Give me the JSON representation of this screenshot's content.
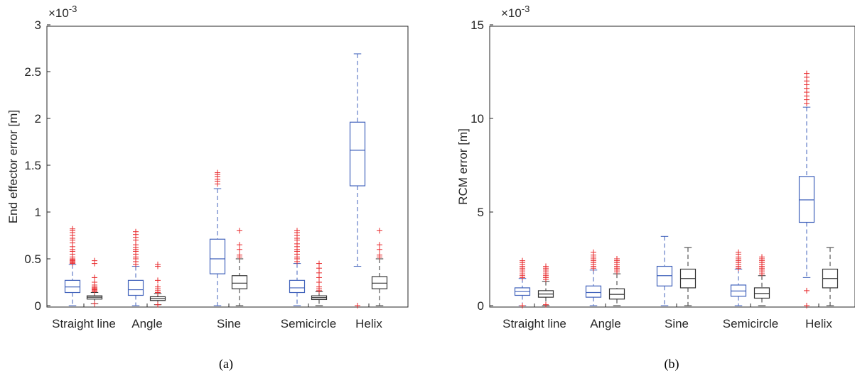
{
  "chart_data": [
    {
      "type": "box",
      "caption": "(a)",
      "ylabel": "End effector error [m]",
      "exponent_label": "×10",
      "exponent_power": "-3",
      "ylim": [
        0,
        3
      ],
      "yticks": [
        "0",
        "0.5",
        "1",
        "1.5",
        "2",
        "2.5",
        "3"
      ],
      "categories": [
        "Straight line",
        "Angle",
        "Sine",
        "Semicircle",
        "Helix"
      ],
      "series_colors": [
        "#4062bb",
        "#333333"
      ],
      "outlier_color": "#e8282b",
      "boxes": [
        {
          "category": "Straight line",
          "series": 0,
          "min": 0.0,
          "q1": 0.14,
          "median": 0.2,
          "q3": 0.27,
          "max": 0.44,
          "outliers": [
            0.45,
            0.46,
            0.47,
            0.48,
            0.49,
            0.5,
            0.52,
            0.55,
            0.58,
            0.6,
            0.63,
            0.67,
            0.7,
            0.72,
            0.75,
            0.78,
            0.8,
            0.82
          ]
        },
        {
          "category": "Straight line",
          "series": 1,
          "min": 0.02,
          "q1": 0.07,
          "median": 0.09,
          "q3": 0.105,
          "max": 0.14,
          "outliers": [
            0.02,
            0.15,
            0.16,
            0.17,
            0.18,
            0.19,
            0.2,
            0.22,
            0.25,
            0.3,
            0.45,
            0.48
          ]
        },
        {
          "category": "Angle",
          "series": 0,
          "min": 0.0,
          "q1": 0.11,
          "median": 0.17,
          "q3": 0.27,
          "max": 0.42,
          "outliers": [
            0.44,
            0.47,
            0.5,
            0.52,
            0.55,
            0.58,
            0.6,
            0.62,
            0.65,
            0.7,
            0.73,
            0.76,
            0.79
          ]
        },
        {
          "category": "Angle",
          "series": 1,
          "min": 0.01,
          "q1": 0.055,
          "median": 0.075,
          "q3": 0.095,
          "max": 0.13,
          "outliers": [
            0.01,
            0.14,
            0.16,
            0.18,
            0.2,
            0.27,
            0.42,
            0.44
          ]
        },
        {
          "category": "Sine",
          "series": 0,
          "min": 0.0,
          "q1": 0.34,
          "median": 0.5,
          "q3": 0.71,
          "max": 1.25,
          "outliers": [
            1.3,
            1.33,
            1.35,
            1.38,
            1.4,
            1.42
          ]
        },
        {
          "category": "Sine",
          "series": 1,
          "min": 0.0,
          "q1": 0.18,
          "median": 0.24,
          "q3": 0.32,
          "max": 0.5,
          "outliers": [
            0.52,
            0.54,
            0.6,
            0.65,
            0.8
          ]
        },
        {
          "category": "Semicircle",
          "series": 0,
          "min": 0.0,
          "q1": 0.14,
          "median": 0.19,
          "q3": 0.27,
          "max": 0.45,
          "outliers": [
            0.47,
            0.5,
            0.52,
            0.55,
            0.58,
            0.6,
            0.63,
            0.66,
            0.7,
            0.72,
            0.75,
            0.78,
            0.8
          ]
        },
        {
          "category": "Semicircle",
          "series": 1,
          "min": 0.0,
          "q1": 0.065,
          "median": 0.085,
          "q3": 0.105,
          "max": 0.15,
          "outliers": [
            0.16,
            0.18,
            0.2,
            0.25,
            0.3,
            0.35,
            0.4,
            0.45
          ]
        },
        {
          "category": "Helix",
          "series": 0,
          "min": 0.42,
          "q1": 1.28,
          "median": 1.66,
          "q3": 1.96,
          "max": 2.69,
          "outliers": [
            0.0
          ]
        },
        {
          "category": "Helix",
          "series": 1,
          "min": 0.0,
          "q1": 0.18,
          "median": 0.24,
          "q3": 0.31,
          "max": 0.5,
          "outliers": [
            0.52,
            0.54,
            0.6,
            0.65,
            0.8
          ]
        }
      ]
    },
    {
      "type": "box",
      "caption": "(b)",
      "ylabel": "RCM error [m]",
      "exponent_label": "×10",
      "exponent_power": "-3",
      "ylim": [
        0,
        15
      ],
      "yticks": [
        "0",
        "5",
        "10",
        "15"
      ],
      "categories": [
        "Straight line",
        "Angle",
        "Sine",
        "Semicircle",
        "Helix"
      ],
      "series_colors": [
        "#4062bb",
        "#333333"
      ],
      "outlier_color": "#e8282b",
      "boxes": [
        {
          "category": "Straight line",
          "series": 0,
          "min": 0.0,
          "q1": 0.55,
          "median": 0.75,
          "q3": 0.95,
          "max": 1.45,
          "outliers": [
            0.0,
            1.5,
            1.6,
            1.7,
            1.8,
            1.9,
            2.0,
            2.1,
            2.2,
            2.3,
            2.4
          ]
        },
        {
          "category": "Straight line",
          "series": 1,
          "min": 0.0,
          "q1": 0.45,
          "median": 0.62,
          "q3": 0.8,
          "max": 1.3,
          "outliers": [
            0.05,
            1.4,
            1.5,
            1.6,
            1.7,
            1.8,
            1.9,
            2.0,
            2.1
          ]
        },
        {
          "category": "Angle",
          "series": 0,
          "min": 0.0,
          "q1": 0.45,
          "median": 0.7,
          "q3": 1.05,
          "max": 1.9,
          "outliers": [
            2.0,
            2.1,
            2.2,
            2.3,
            2.4,
            2.5,
            2.6,
            2.7,
            2.85
          ]
        },
        {
          "category": "Angle",
          "series": 1,
          "min": 0.0,
          "q1": 0.35,
          "median": 0.6,
          "q3": 0.9,
          "max": 1.7,
          "outliers": [
            1.8,
            1.9,
            2.0,
            2.1,
            2.2,
            2.3,
            2.4,
            2.5
          ]
        },
        {
          "category": "Sine",
          "series": 0,
          "min": 0.0,
          "q1": 1.05,
          "median": 1.6,
          "q3": 2.1,
          "max": 3.7,
          "outliers": []
        },
        {
          "category": "Sine",
          "series": 1,
          "min": 0.0,
          "q1": 0.95,
          "median": 1.45,
          "q3": 1.95,
          "max": 3.1,
          "outliers": []
        },
        {
          "category": "Semicircle",
          "series": 0,
          "min": 0.0,
          "q1": 0.5,
          "median": 0.78,
          "q3": 1.1,
          "max": 1.95,
          "outliers": [
            2.0,
            2.1,
            2.2,
            2.3,
            2.4,
            2.5,
            2.6,
            2.75,
            2.85
          ]
        },
        {
          "category": "Semicircle",
          "series": 1,
          "min": 0.0,
          "q1": 0.4,
          "median": 0.65,
          "q3": 0.95,
          "max": 1.6,
          "outliers": [
            1.7,
            1.8,
            1.9,
            2.0,
            2.1,
            2.2,
            2.3,
            2.4,
            2.5,
            2.6
          ]
        },
        {
          "category": "Helix",
          "series": 0,
          "min": 1.5,
          "q1": 4.45,
          "median": 5.65,
          "q3": 6.9,
          "max": 10.6,
          "outliers": [
            0.0,
            0.8,
            10.8,
            11.0,
            11.2,
            11.4,
            11.6,
            11.8,
            12.0,
            12.2,
            12.4
          ]
        },
        {
          "category": "Helix",
          "series": 1,
          "min": 0.0,
          "q1": 0.95,
          "median": 1.45,
          "q3": 1.95,
          "max": 3.1,
          "outliers": []
        }
      ]
    }
  ]
}
